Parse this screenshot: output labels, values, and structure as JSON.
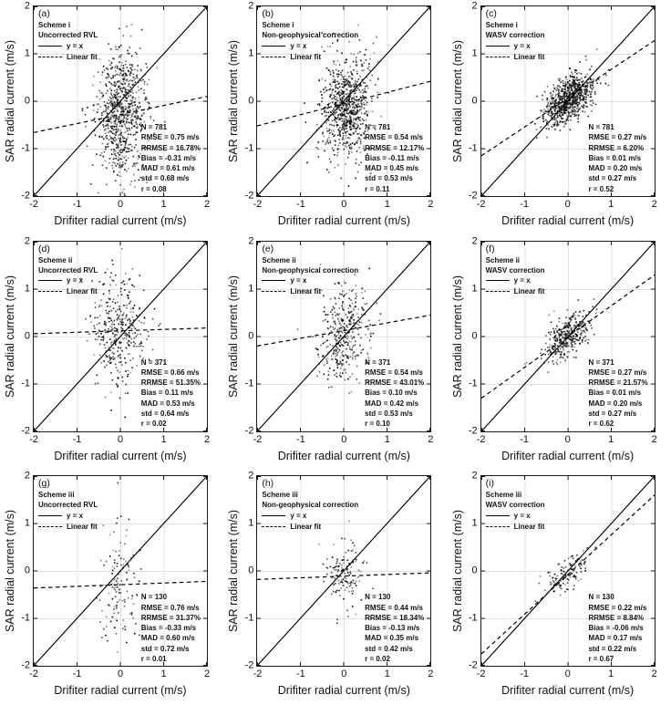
{
  "chart_data": {
    "type": "scatter",
    "xlabel": "Drifiter radial current (m/s)",
    "ylabel": "SAR radial current (m/s)",
    "xlim": [
      -2,
      2
    ],
    "ylim": [
      -2,
      2
    ],
    "tick_values": [
      -2,
      -1,
      0,
      1,
      2
    ],
    "tick_labels": [
      "-2",
      "-1",
      "0",
      "1",
      "2"
    ],
    "grid": true,
    "legend": {
      "identity": "y = x",
      "fit": "Linear fit",
      "position": "top-left"
    },
    "reference_line": {
      "type": "identity",
      "style": "solid"
    },
    "style": {
      "grid_color": "#e0e0e0",
      "axis_color": "#1a1a1a",
      "line_color": "#000000",
      "point_color": "#000000"
    },
    "panels": [
      {
        "label": "(a)",
        "scheme": "Scheme i",
        "correction": "Uncorrected RVL",
        "stats": [
          "N = 781",
          "RMSE = 0.75 m/s",
          "RRMSE = 16.78%",
          "Bias = -0.31 m/s",
          "MAD = 0.61 m/s",
          "std = 0.68 m/s",
          "r = 0.08"
        ],
        "fit_line": {
          "x": [
            -2,
            2
          ],
          "y": [
            -0.66,
            0.1
          ]
        },
        "scatter": {
          "n": 781,
          "mean_x": 0.05,
          "std_x": 0.3,
          "mean_y": -0.28,
          "std_y": 0.66,
          "r": 0.08,
          "seed": 101
        }
      },
      {
        "label": "(b)",
        "scheme": "Scheme i",
        "correction": "Non-geophysical correction",
        "stats": [
          "N = 781",
          "RMSE = 0.54 m/s",
          "RRMSE = 12.17%",
          "Bias = -0.11 m/s",
          "MAD = 0.45 m/s",
          "std = 0.53 m/s",
          "r = 0.11"
        ],
        "fit_line": {
          "x": [
            -2,
            2
          ],
          "y": [
            -0.52,
            0.42
          ]
        },
        "scatter": {
          "n": 781,
          "mean_x": 0.05,
          "std_x": 0.3,
          "mean_y": -0.1,
          "std_y": 0.53,
          "r": 0.11,
          "seed": 102
        }
      },
      {
        "label": "(c)",
        "scheme": "Scheme i",
        "correction": "WASV correction",
        "stats": [
          "N = 781",
          "RMSE = 0.27 m/s",
          "RRMSE = 6.20%",
          "Bias = 0.01 m/s",
          "MAD = 0.20 m/s",
          "std = 0.27 m/s",
          "r = 0.52"
        ],
        "fit_line": {
          "x": [
            -2,
            2
          ],
          "y": [
            -1.15,
            1.28
          ]
        },
        "scatter": {
          "n": 781,
          "mean_x": 0.03,
          "std_x": 0.3,
          "mean_y": 0.06,
          "std_y": 0.27,
          "r": 0.52,
          "seed": 103
        }
      },
      {
        "label": "(d)",
        "scheme": "Scheme ii",
        "correction": "Uncorrected RVL",
        "stats": [
          "N = 371",
          "RMSE = 0.66 m/s",
          "RRMSE = 51.35%",
          "Bias = 0.11 m/s",
          "MAD = 0.53 m/s",
          "std = 0.64 m/s",
          "r = 0.02"
        ],
        "fit_line": {
          "x": [
            -2,
            2
          ],
          "y": [
            0.06,
            0.18
          ]
        },
        "scatter": {
          "n": 371,
          "mean_x": 0.0,
          "std_x": 0.3,
          "mean_y": 0.1,
          "std_y": 0.62,
          "r": 0.02,
          "seed": 104
        }
      },
      {
        "label": "(e)",
        "scheme": "Scheme ii",
        "correction": "Non-geophysical correction",
        "stats": [
          "N = 371",
          "RMSE = 0.54 m/s",
          "RRMSE = 43.01%",
          "Bias = 0.10 m/s",
          "MAD = 0.42 m/s",
          "std = 0.53 m/s",
          "r = 0.10"
        ],
        "fit_line": {
          "x": [
            -2,
            2
          ],
          "y": [
            -0.2,
            0.45
          ]
        },
        "scatter": {
          "n": 371,
          "mean_x": 0.0,
          "std_x": 0.3,
          "mean_y": 0.08,
          "std_y": 0.5,
          "r": 0.1,
          "seed": 105
        }
      },
      {
        "label": "(f)",
        "scheme": "Scheme ii",
        "correction": "WASV correction",
        "stats": [
          "N = 371",
          "RMSE = 0.27 m/s",
          "RRMSE = 21.57%",
          "Bias = 0.01 m/s",
          "MAD = 0.20 m/s",
          "std = 0.27 m/s",
          "r = 0.62"
        ],
        "fit_line": {
          "x": [
            -2,
            2
          ],
          "y": [
            -1.3,
            1.3
          ]
        },
        "scatter": {
          "n": 371,
          "mean_x": 0.0,
          "std_x": 0.28,
          "mean_y": 0.0,
          "std_y": 0.27,
          "r": 0.62,
          "seed": 106
        }
      },
      {
        "label": "(g)",
        "scheme": "Scheme iii",
        "correction": "Uncorrected RVL",
        "stats": [
          "N = 130",
          "RMSE = 0.76 m/s",
          "RRMSE = 31.37%",
          "Bias = -0.33 m/s",
          "MAD = 0.60 m/s",
          "std = 0.72 m/s",
          "r = 0.01"
        ],
        "fit_line": {
          "x": [
            -2,
            2
          ],
          "y": [
            -0.36,
            -0.22
          ]
        },
        "scatter": {
          "n": 130,
          "mean_x": 0.0,
          "std_x": 0.22,
          "mean_y": -0.3,
          "std_y": 0.68,
          "r": 0.01,
          "seed": 107
        }
      },
      {
        "label": "(h)",
        "scheme": "Scheme iii",
        "correction": "Non-geophysical correction",
        "stats": [
          "N = 130",
          "RMSE = 0.44 m/s",
          "RRMSE = 18.34%",
          "Bias = -0.13 m/s",
          "MAD = 0.35 m/s",
          "std = 0.42 m/s",
          "r = 0.02"
        ],
        "fit_line": {
          "x": [
            -2,
            2
          ],
          "y": [
            -0.18,
            -0.04
          ]
        },
        "scatter": {
          "n": 130,
          "mean_x": 0.0,
          "std_x": 0.22,
          "mean_y": -0.12,
          "std_y": 0.4,
          "r": 0.02,
          "seed": 108
        }
      },
      {
        "label": "(i)",
        "scheme": "Scheme iii",
        "correction": "WASV correction",
        "stats": [
          "N = 130",
          "RMSE = 0.22 m/s",
          "RRMSE = 8.84%",
          "Bias = -0.06 m/s",
          "MAD = 0.17 m/s",
          "std = 0.22 m/s",
          "r = 0.67"
        ],
        "fit_line": {
          "x": [
            -2,
            2
          ],
          "y": [
            -1.75,
            1.6
          ]
        },
        "scatter": {
          "n": 130,
          "mean_x": -0.03,
          "std_x": 0.26,
          "mean_y": -0.05,
          "std_y": 0.24,
          "r": 0.67,
          "seed": 109
        }
      }
    ]
  }
}
